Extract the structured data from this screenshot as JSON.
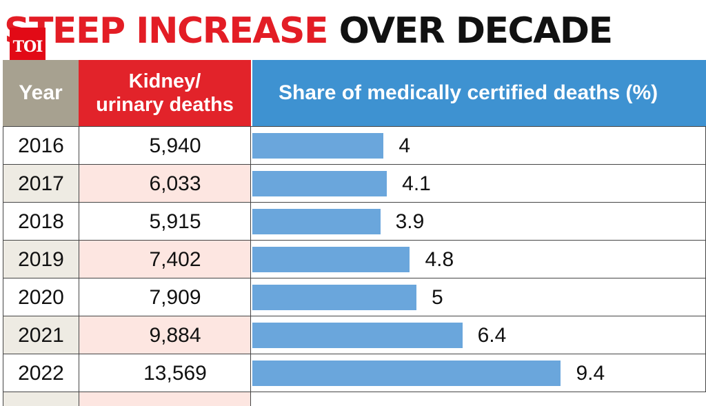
{
  "title": {
    "red": "STEEP INCREASE",
    "black": "OVER DECADE"
  },
  "logo": "TOI",
  "colors": {
    "title_red": "#e31d25",
    "year_header": "#a7a190",
    "deaths_header": "#e2232a",
    "share_header": "#3e92d1",
    "bar": "#6aa6dc"
  },
  "headers": {
    "year": "Year",
    "deaths_line1": "Kidney/",
    "deaths_line2": "urinary deaths",
    "share": "Share of medically certified deaths (%)"
  },
  "chart_data": {
    "type": "table",
    "xlim": [
      0,
      15
    ],
    "columns": [
      "Year",
      "Kidney/ urinary deaths",
      "Share of medically certified deaths (%)"
    ],
    "rows": [
      {
        "year": "2016",
        "deaths": "5,940",
        "share": 4,
        "share_label": "4"
      },
      {
        "year": "2017",
        "deaths": "6,033",
        "share": 4.1,
        "share_label": "4.1"
      },
      {
        "year": "2018",
        "deaths": "5,915",
        "share": 3.9,
        "share_label": "3.9"
      },
      {
        "year": "2019",
        "deaths": "7,402",
        "share": 4.8,
        "share_label": "4.8"
      },
      {
        "year": "2020",
        "deaths": "7,909",
        "share": 5,
        "share_label": "5"
      },
      {
        "year": "2021",
        "deaths": "9,884",
        "share": 6.4,
        "share_label": "6.4"
      },
      {
        "year": "2022",
        "deaths": "13,569",
        "share": 9.4,
        "share_label": "9.4"
      }
    ]
  }
}
